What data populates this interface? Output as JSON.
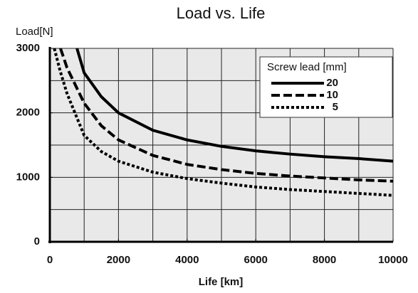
{
  "chart_data": {
    "type": "line",
    "title": "Load vs. Life",
    "ylabel": "Load[N]",
    "xlabel": "Life [km]",
    "xlim": [
      0,
      10000
    ],
    "ylim": [
      0,
      3000
    ],
    "xticks": [
      0,
      2000,
      4000,
      6000,
      8000,
      10000
    ],
    "yticks": [
      0,
      1000,
      2000,
      3000
    ],
    "xgrid": [
      1000,
      2000,
      3000,
      4000,
      5000,
      6000,
      7000,
      8000,
      9000
    ],
    "ygrid": [
      500,
      1000,
      1500,
      2000,
      2500
    ],
    "grid": true,
    "legend_title": "Screw lead [mm]",
    "legend": "upper right",
    "series": [
      {
        "name": "20",
        "color": "#000000",
        "dash": "solid",
        "x": [
          790,
          1000,
          1500,
          2000,
          3000,
          4000,
          5000,
          6000,
          7000,
          8000,
          9000,
          10000
        ],
        "values": [
          3000,
          2620,
          2250,
          2000,
          1730,
          1580,
          1480,
          1410,
          1360,
          1320,
          1290,
          1250
        ]
      },
      {
        "name": "10",
        "color": "#000000",
        "dash": "dashed",
        "x": [
          310,
          500,
          1000,
          1500,
          2000,
          3000,
          4000,
          5000,
          6000,
          7000,
          8000,
          9000,
          10000
        ],
        "values": [
          3000,
          2700,
          2150,
          1800,
          1580,
          1340,
          1200,
          1120,
          1060,
          1020,
          990,
          960,
          940
        ]
      },
      {
        "name": "5",
        "color": "#000000",
        "dash": "dotted",
        "x": [
          130,
          300,
          500,
          1000,
          1500,
          2000,
          3000,
          4000,
          5000,
          6000,
          7000,
          8000,
          9000,
          10000
        ],
        "values": [
          3000,
          2650,
          2300,
          1650,
          1400,
          1250,
          1080,
          980,
          910,
          850,
          810,
          780,
          750,
          720
        ]
      }
    ]
  }
}
